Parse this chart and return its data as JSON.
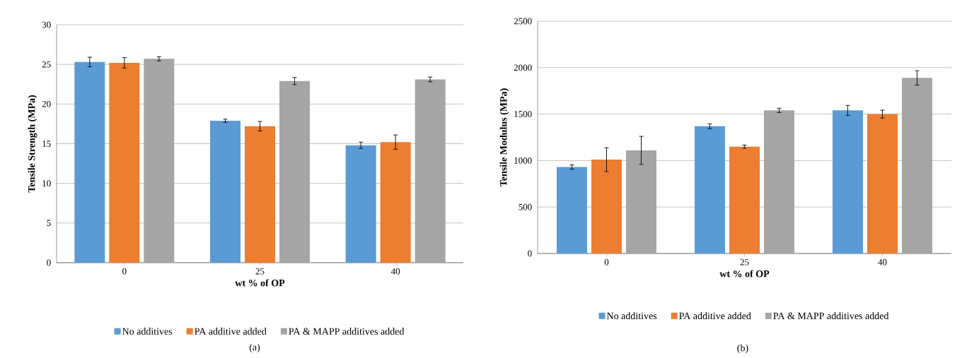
{
  "chart_data": [
    {
      "type": "bar",
      "categories": [
        "0",
        "25",
        "40"
      ],
      "xlabel": "wt % of OP",
      "ylabel": "Tensile Strength (MPa)",
      "ylim": [
        0,
        30
      ],
      "yticks": [
        0,
        5,
        10,
        15,
        20,
        25,
        30
      ],
      "grid": "y",
      "legend": "bottom",
      "annotations": [
        "(a)"
      ],
      "series": [
        {
          "name": "No additives",
          "color": "#5b9bd5",
          "values": [
            25.3,
            17.9,
            14.8
          ],
          "errors": [
            0.6,
            0.2,
            0.4
          ]
        },
        {
          "name": "PA additive added",
          "color": "#ed7d31",
          "values": [
            25.2,
            17.2,
            15.2
          ],
          "errors": [
            0.65,
            0.6,
            0.9
          ]
        },
        {
          "name": "PA & MAPP additives added",
          "color": "#a5a5a5",
          "values": [
            25.7,
            22.9,
            23.1
          ],
          "errors": [
            0.25,
            0.45,
            0.3
          ]
        }
      ]
    },
    {
      "type": "bar",
      "categories": [
        "0",
        "25",
        "40"
      ],
      "xlabel": "wt % of OP",
      "ylabel": "Tensile Modulus (MPa)",
      "ylim": [
        0,
        2500
      ],
      "yticks": [
        0,
        500,
        1000,
        1500,
        2000,
        2500
      ],
      "grid": "y",
      "legend": "bottom",
      "annotations": [
        "(b)"
      ],
      "series": [
        {
          "name": "No additives",
          "color": "#5b9bd5",
          "values": [
            930,
            1370,
            1540
          ],
          "errors": [
            23,
            26,
            54
          ]
        },
        {
          "name": "PA additive added",
          "color": "#ed7d31",
          "values": [
            1010,
            1150,
            1500
          ],
          "errors": [
            128,
            17,
            42
          ]
        },
        {
          "name": "PA & MAPP additives added",
          "color": "#a5a5a5",
          "values": [
            1110,
            1540,
            1890
          ],
          "errors": [
            151,
            23,
            77
          ]
        }
      ]
    }
  ]
}
